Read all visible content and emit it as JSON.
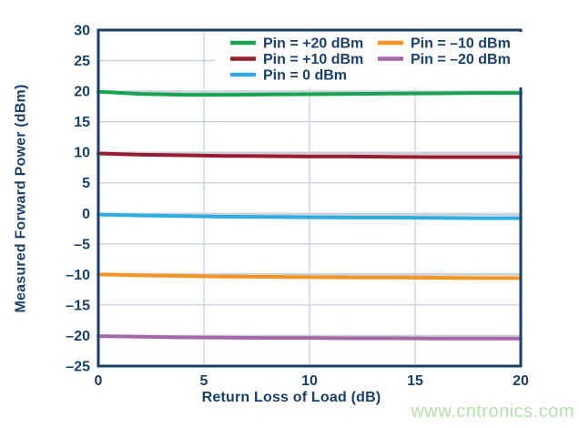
{
  "watermark": {
    "text": "www.cntronics.com",
    "color": "#b7dfad"
  },
  "style": {
    "axis_color": "#1b4065",
    "grid_color": "#c7d1de",
    "reference_line_color": "#ccd2da",
    "background": "#ffffff"
  },
  "chart_data": {
    "type": "line",
    "title": "",
    "xlabel": "Return Loss of Load (dB)",
    "ylabel": "Measured Forward Power (dBm)",
    "xlim": [
      0,
      20
    ],
    "ylim": [
      -25,
      30
    ],
    "x_ticks": [
      0,
      5,
      10,
      15,
      20
    ],
    "x_tick_labels": [
      "0",
      "5",
      "10",
      "15",
      "20"
    ],
    "y_ticks": [
      30,
      25,
      20,
      15,
      10,
      5,
      0,
      -5,
      -10,
      -15,
      -20,
      -25
    ],
    "y_tick_labels": [
      "30",
      "25",
      "20",
      "15",
      "10",
      "5",
      "0",
      "–5",
      "–10",
      "–15",
      "–20",
      "–25"
    ],
    "grid": true,
    "legend_position": "top-inside",
    "x": [
      0,
      2,
      4,
      6,
      8,
      10,
      12,
      14,
      16,
      18,
      20
    ],
    "series": [
      {
        "name": "Pin = +20 dBm",
        "color": "#17a350",
        "reference_level": 19.9,
        "values": [
          19.9,
          19.55,
          19.4,
          19.4,
          19.45,
          19.5,
          19.55,
          19.6,
          19.65,
          19.7,
          19.7
        ]
      },
      {
        "name": "Pin = +10 dBm",
        "color": "#9a1c31",
        "reference_level": 9.8,
        "values": [
          9.8,
          9.6,
          9.5,
          9.4,
          9.35,
          9.3,
          9.3,
          9.25,
          9.2,
          9.2,
          9.2
        ]
      },
      {
        "name": "Pin = 0 dBm",
        "color": "#2fade3",
        "reference_level": -0.2,
        "values": [
          -0.2,
          -0.35,
          -0.45,
          -0.55,
          -0.6,
          -0.65,
          -0.7,
          -0.7,
          -0.75,
          -0.8,
          -0.8
        ]
      },
      {
        "name": "Pin = –10 dBm",
        "color": "#f79421",
        "reference_level": -10.0,
        "values": [
          -10.0,
          -10.15,
          -10.25,
          -10.35,
          -10.4,
          -10.45,
          -10.5,
          -10.5,
          -10.55,
          -10.6,
          -10.6
        ]
      },
      {
        "name": "Pin = –20 dBm",
        "color": "#a765aa",
        "reference_level": -20.1,
        "values": [
          -20.1,
          -20.2,
          -20.3,
          -20.35,
          -20.4,
          -20.4,
          -20.45,
          -20.45,
          -20.5,
          -20.5,
          -20.5
        ]
      }
    ]
  }
}
